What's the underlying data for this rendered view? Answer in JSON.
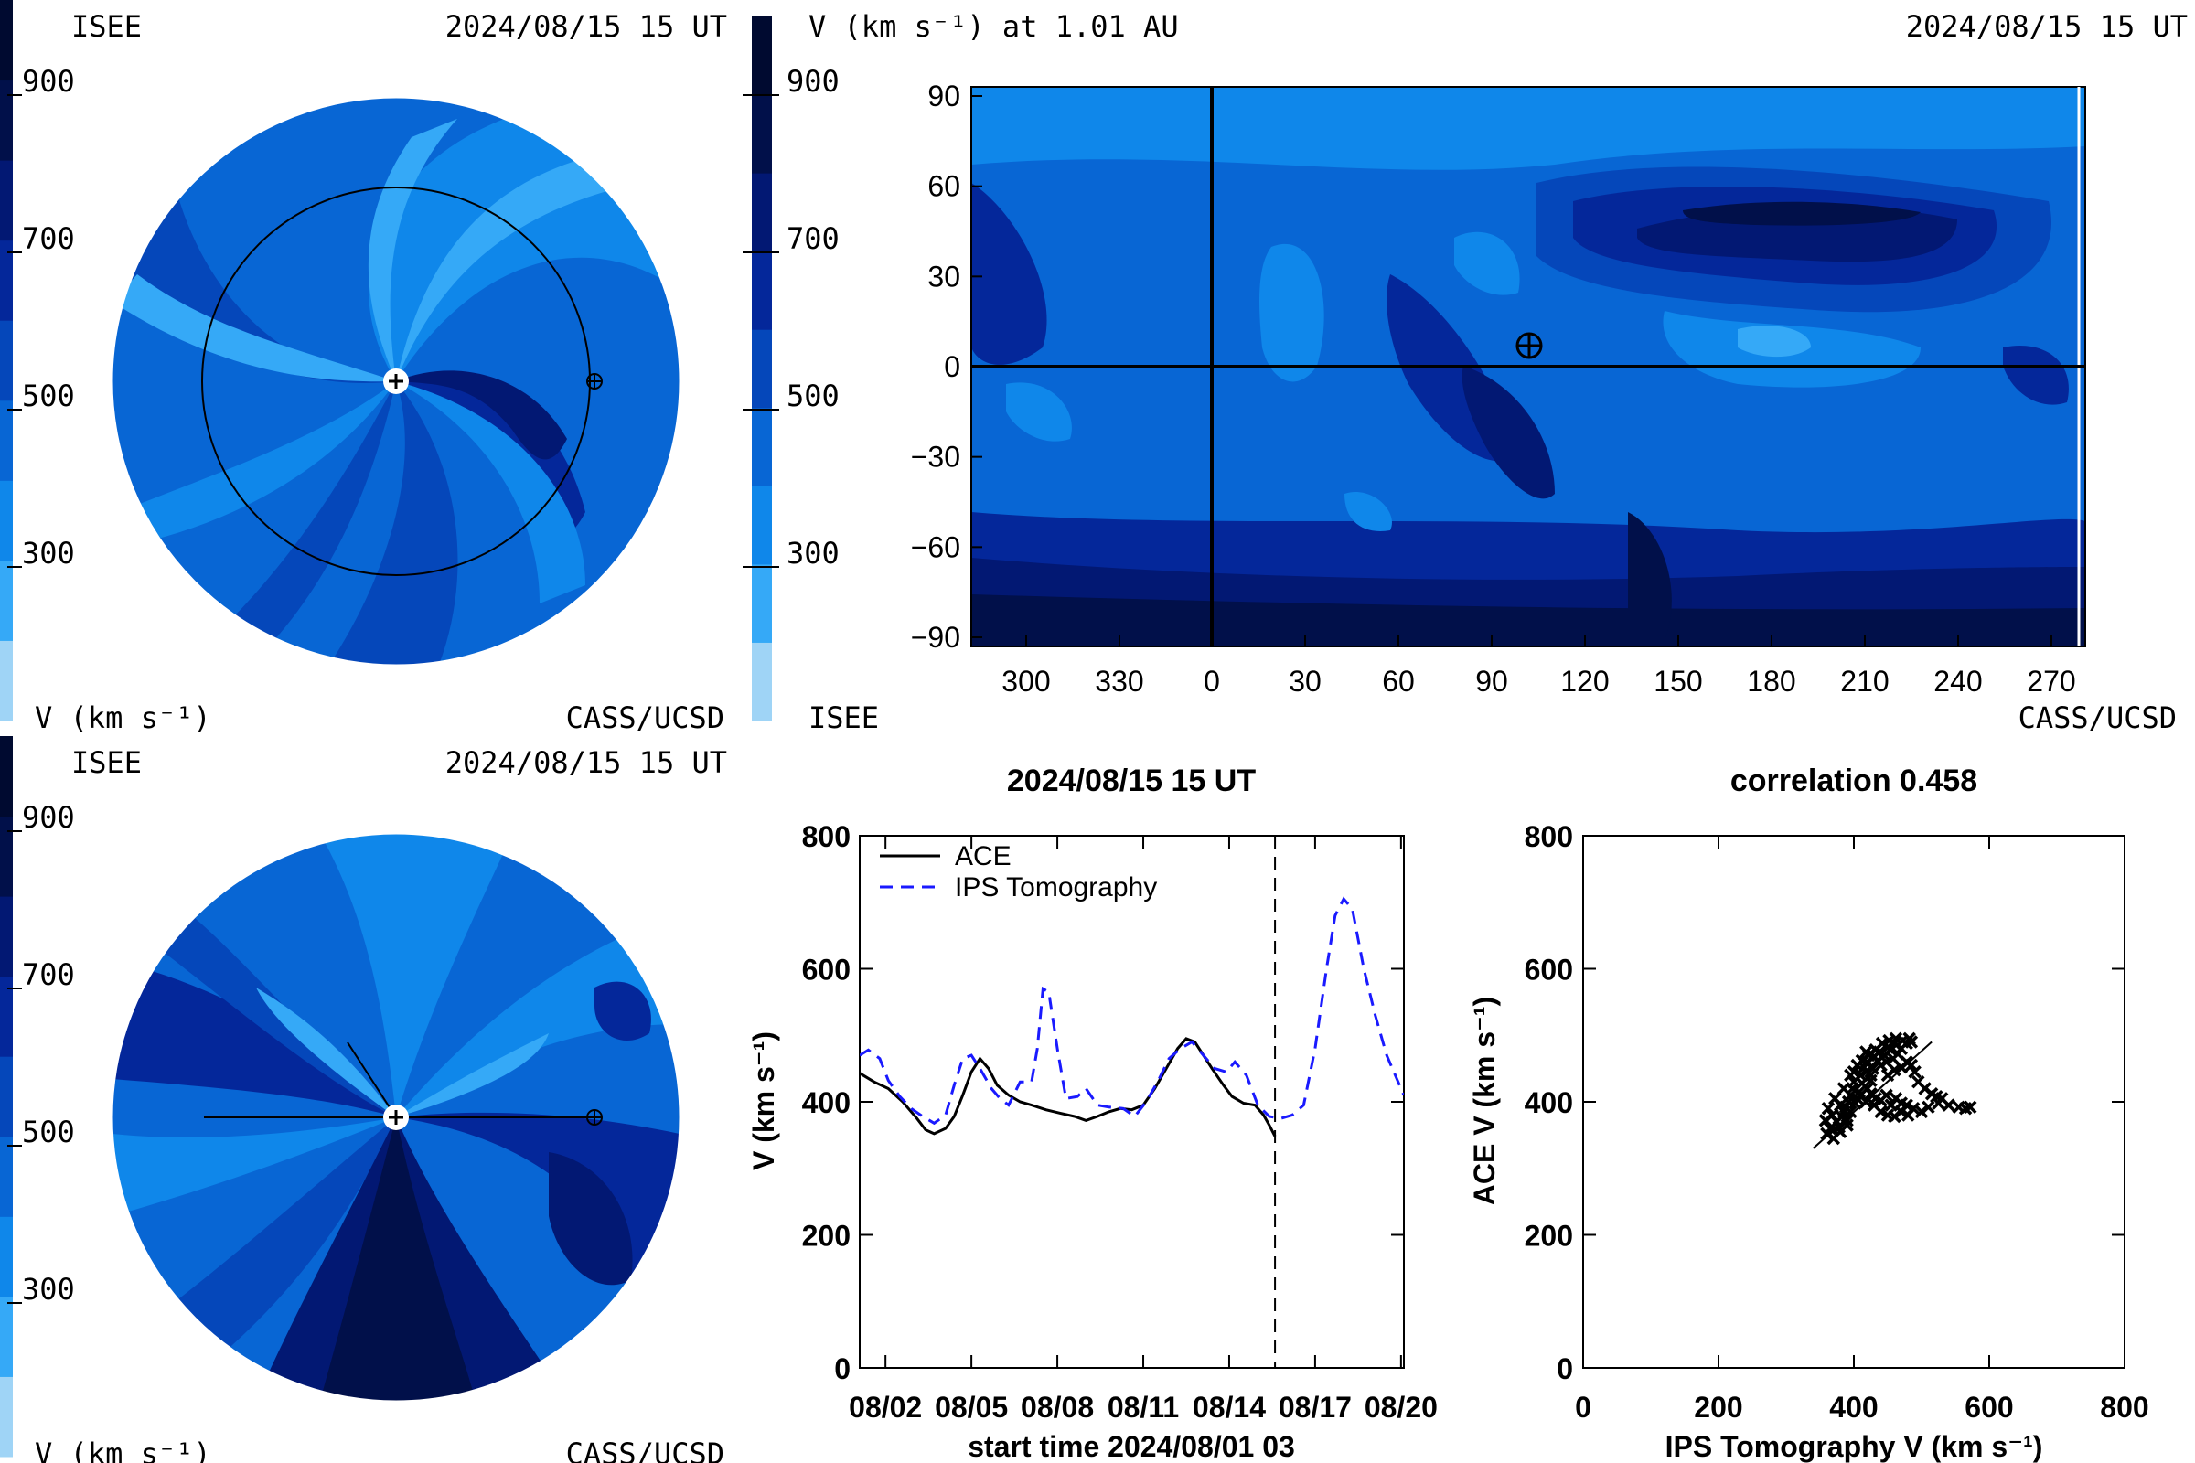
{
  "colors": {
    "scale": [
      "#9fd4f6",
      "#35a9f7",
      "#0f87ea",
      "#0866d4",
      "#0547ba",
      "#04279a",
      "#021873",
      "#01104a",
      "#000a30"
    ],
    "ace": "#000000",
    "ips": "#1a1aff"
  },
  "panels": {
    "ecliptic": {
      "org": "ISEE",
      "date": "2024/08/15 15 UT",
      "unit": "V (km s⁻¹)",
      "credit": "CASS/UCSD",
      "ticks": [
        "900",
        "700",
        "500",
        "300"
      ]
    },
    "meridional": {
      "org": "ISEE",
      "date": "2024/08/15 15 UT",
      "unit": "V (km s⁻¹)",
      "credit": "CASS/UCSD",
      "ticks": [
        "900",
        "700",
        "500",
        "300"
      ]
    },
    "synoptic": {
      "title": "V (km s⁻¹) at 1.01 AU",
      "date": "2024/08/15 15 UT",
      "org": "ISEE",
      "credit": "CASS/UCSD",
      "ticks": [
        "900",
        "700",
        "500",
        "300"
      ],
      "x_ticks": [
        "300",
        "330",
        "0",
        "30",
        "60",
        "90",
        "120",
        "150",
        "180",
        "210",
        "240",
        "270"
      ],
      "y_ticks": [
        "90",
        "60",
        "30",
        "0",
        "−30",
        "−60",
        "−90"
      ]
    }
  },
  "chart_data": [
    {
      "type": "line",
      "title": "2024/08/15 15 UT",
      "xlabel": "start time 2024/08/01 03",
      "ylabel": "V (km s⁻¹)",
      "ylim": [
        0,
        800
      ],
      "xlim": [
        0,
        19
      ],
      "x_ticks": [
        "08/02",
        "08/05",
        "08/08",
        "08/11",
        "08/14",
        "08/17",
        "08/20"
      ],
      "y_ticks": [
        "0",
        "200",
        "400",
        "600",
        "800"
      ],
      "legend_position": "top-left",
      "current_time_marker": 14.5,
      "series": [
        {
          "name": "ACE",
          "style": "solid",
          "points": [
            [
              0,
              443
            ],
            [
              0.5,
              430
            ],
            [
              1,
              420
            ],
            [
              1.5,
              400
            ],
            [
              2,
              375
            ],
            [
              2.3,
              358
            ],
            [
              2.6,
              352
            ],
            [
              3,
              360
            ],
            [
              3.3,
              378
            ],
            [
              3.6,
              410
            ],
            [
              3.9,
              445
            ],
            [
              4.2,
              465
            ],
            [
              4.5,
              450
            ],
            [
              4.8,
              425
            ],
            [
              5.2,
              410
            ],
            [
              5.6,
              400
            ],
            [
              6,
              395
            ],
            [
              6.5,
              388
            ],
            [
              7,
              383
            ],
            [
              7.5,
              378
            ],
            [
              7.9,
              372
            ],
            [
              8.3,
              378
            ],
            [
              8.7,
              385
            ],
            [
              9.1,
              390
            ],
            [
              9.5,
              388
            ],
            [
              9.9,
              395
            ],
            [
              10.3,
              420
            ],
            [
              10.7,
              450
            ],
            [
              11.1,
              480
            ],
            [
              11.4,
              495
            ],
            [
              11.7,
              490
            ],
            [
              12,
              470
            ],
            [
              12.3,
              450
            ],
            [
              12.7,
              425
            ],
            [
              13,
              408
            ],
            [
              13.4,
              398
            ],
            [
              13.8,
              395
            ],
            [
              14.1,
              380
            ],
            [
              14.3,
              365
            ],
            [
              14.5,
              348
            ]
          ]
        },
        {
          "name": "IPS Tomography",
          "style": "dashed",
          "points": [
            [
              0,
              470
            ],
            [
              0.3,
              478
            ],
            [
              0.7,
              465
            ],
            [
              1,
              432
            ],
            [
              1.4,
              408
            ],
            [
              1.8,
              390
            ],
            [
              2.2,
              378
            ],
            [
              2.6,
              368
            ],
            [
              3,
              380
            ],
            [
              3.3,
              425
            ],
            [
              3.6,
              465
            ],
            [
              3.9,
              470
            ],
            [
              4.2,
              450
            ],
            [
              4.6,
              420
            ],
            [
              4.9,
              405
            ],
            [
              5.2,
              395
            ],
            [
              5.6,
              430
            ],
            [
              6,
              430
            ],
            [
              6.2,
              480
            ],
            [
              6.4,
              570
            ],
            [
              6.6,
              565
            ],
            [
              6.9,
              480
            ],
            [
              7.2,
              405
            ],
            [
              7.6,
              408
            ],
            [
              7.9,
              420
            ],
            [
              8.3,
              395
            ],
            [
              8.7,
              392
            ],
            [
              9.2,
              390
            ],
            [
              9.6,
              378
            ],
            [
              10,
              400
            ],
            [
              10.4,
              430
            ],
            [
              10.8,
              465
            ],
            [
              11.2,
              480
            ],
            [
              11.6,
              490
            ],
            [
              12,
              470
            ],
            [
              12.4,
              450
            ],
            [
              12.8,
              445
            ],
            [
              13.1,
              460
            ],
            [
              13.5,
              440
            ],
            [
              13.9,
              395
            ],
            [
              14.3,
              378
            ],
            [
              14.7,
              375
            ],
            [
              15.1,
              380
            ],
            [
              15.5,
              395
            ],
            [
              15.9,
              480
            ],
            [
              16.3,
              600
            ],
            [
              16.6,
              680
            ],
            [
              16.9,
              705
            ],
            [
              17.2,
              690
            ],
            [
              17.6,
              600
            ],
            [
              18,
              530
            ],
            [
              18.4,
              470
            ],
            [
              18.8,
              430
            ],
            [
              19,
              410
            ]
          ]
        }
      ]
    },
    {
      "type": "scatter",
      "title": "correlation 0.458",
      "xlabel": "IPS Tomography V (km s⁻¹)",
      "ylabel": "ACE V (km s⁻¹)",
      "xlim": [
        0,
        800
      ],
      "ylim": [
        0,
        800
      ],
      "x_ticks": [
        "0",
        "200",
        "400",
        "600",
        "800"
      ],
      "y_ticks": [
        "0",
        "200",
        "400",
        "600",
        "800"
      ],
      "fit_line": [
        [
          340,
          330
        ],
        [
          515,
          490
        ]
      ],
      "points": [
        [
          360,
          352
        ],
        [
          365,
          360
        ],
        [
          370,
          358
        ],
        [
          375,
          370
        ],
        [
          368,
          380
        ],
        [
          380,
          395
        ],
        [
          385,
          385
        ],
        [
          390,
          372
        ],
        [
          392,
          400
        ],
        [
          395,
          410
        ],
        [
          398,
          420
        ],
        [
          400,
          430
        ],
        [
          405,
          405
        ],
        [
          408,
          415
        ],
        [
          410,
          440
        ],
        [
          412,
          428
        ],
        [
          415,
          452
        ],
        [
          418,
          445
        ],
        [
          420,
          460
        ],
        [
          422,
          470
        ],
        [
          425,
          432
        ],
        [
          428,
          450
        ],
        [
          430,
          468
        ],
        [
          432,
          478
        ],
        [
          435,
          462
        ],
        [
          438,
          475
        ],
        [
          440,
          455
        ],
        [
          442,
          488
        ],
        [
          445,
          470
        ],
        [
          448,
          460
        ],
        [
          450,
          482
        ],
        [
          452,
          492
        ],
        [
          455,
          478
        ],
        [
          458,
          465
        ],
        [
          460,
          488
        ],
        [
          462,
          495
        ],
        [
          465,
          472
        ],
        [
          470,
          480
        ],
        [
          472,
          492
        ],
        [
          478,
          488
        ],
        [
          482,
          495
        ],
        [
          485,
          490
        ],
        [
          378,
          362
        ],
        [
          382,
          378
        ],
        [
          388,
          392
        ],
        [
          395,
          385
        ],
        [
          402,
          398
        ],
        [
          410,
          410
        ],
        [
          418,
          400
        ],
        [
          425,
          412
        ],
        [
          432,
          405
        ],
        [
          440,
          402
        ],
        [
          448,
          410
        ],
        [
          455,
          395
        ],
        [
          462,
          405
        ],
        [
          470,
          398
        ],
        [
          478,
          395
        ],
        [
          488,
          390
        ],
        [
          500,
          385
        ],
        [
          510,
          392
        ],
        [
          525,
          398
        ],
        [
          540,
          395
        ],
        [
          555,
          392
        ],
        [
          565,
          390
        ],
        [
          572,
          392
        ],
        [
          430,
          395
        ],
        [
          440,
          385
        ],
        [
          450,
          380
        ],
        [
          460,
          378
        ],
        [
          470,
          385
        ],
        [
          480,
          380
        ],
        [
          420,
          420
        ],
        [
          425,
          440
        ],
        [
          400,
          445
        ],
        [
          405,
          455
        ],
        [
          412,
          462
        ],
        [
          418,
          475
        ],
        [
          395,
          440
        ],
        [
          385,
          420
        ],
        [
          372,
          405
        ],
        [
          362,
          390
        ],
        [
          358,
          372
        ],
        [
          370,
          345
        ],
        [
          380,
          355
        ],
        [
          390,
          365
        ],
        [
          450,
          440
        ],
        [
          460,
          448
        ],
        [
          470,
          452
        ],
        [
          478,
          460
        ],
        [
          485,
          455
        ],
        [
          490,
          445
        ],
        [
          495,
          430
        ],
        [
          505,
          420
        ],
        [
          515,
          412
        ],
        [
          522,
          408
        ],
        [
          530,
          405
        ]
      ]
    }
  ]
}
